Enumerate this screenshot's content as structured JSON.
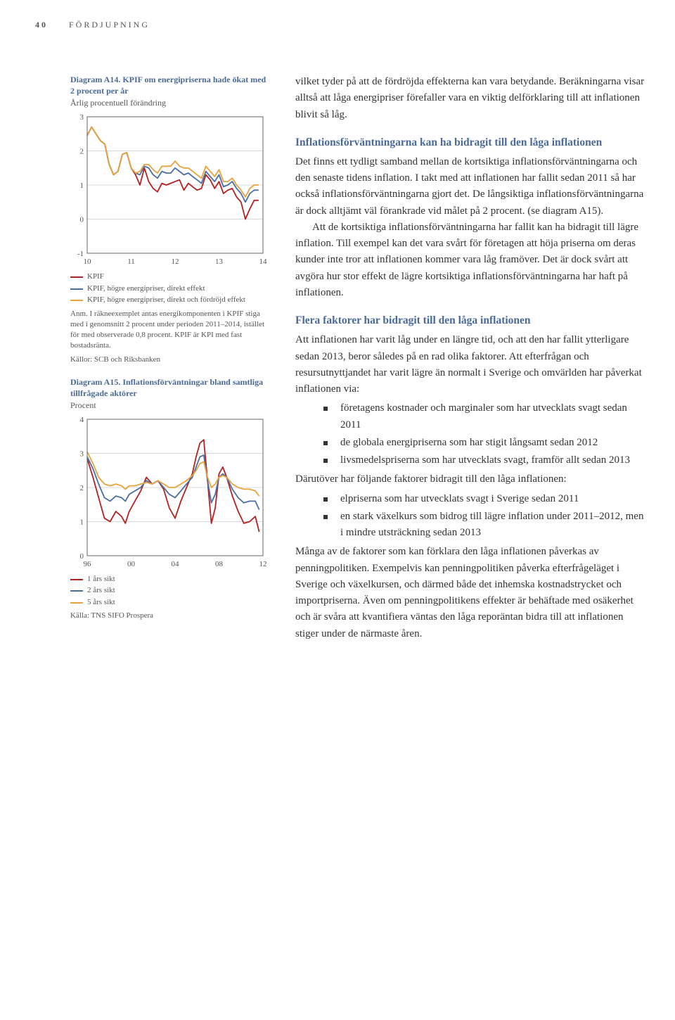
{
  "header": {
    "page_number": "40",
    "section": "FÖRDJUPNING"
  },
  "chartA14": {
    "title": "Diagram A14. KPIF om energipriserna hade ökat med 2 procent per år",
    "subtitle": "Årlig procentuell förändring",
    "type": "line",
    "background_color": "#ffffff",
    "grid_color": "#d9d9d9",
    "axis_color": "#666666",
    "tick_fontsize": 11,
    "xticks": [
      "10",
      "11",
      "12",
      "13",
      "14"
    ],
    "yticks": [
      "-1",
      "0",
      "1",
      "2",
      "3"
    ],
    "ylim": [
      -1,
      3
    ],
    "xlim": [
      0,
      4
    ],
    "series": [
      {
        "name": "KPIF",
        "color": "#b22222",
        "points": [
          [
            0.0,
            2.45
          ],
          [
            0.1,
            2.7
          ],
          [
            0.2,
            2.5
          ],
          [
            0.3,
            2.3
          ],
          [
            0.4,
            2.2
          ],
          [
            0.5,
            1.6
          ],
          [
            0.6,
            1.3
          ],
          [
            0.7,
            1.4
          ],
          [
            0.8,
            1.9
          ],
          [
            0.9,
            1.95
          ],
          [
            1.0,
            1.5
          ],
          [
            1.1,
            1.3
          ],
          [
            1.2,
            1.0
          ],
          [
            1.3,
            1.5
          ],
          [
            1.4,
            1.1
          ],
          [
            1.5,
            0.9
          ],
          [
            1.6,
            0.8
          ],
          [
            1.7,
            1.05
          ],
          [
            1.8,
            1.0
          ],
          [
            1.9,
            1.05
          ],
          [
            2.0,
            1.1
          ],
          [
            2.1,
            1.15
          ],
          [
            2.2,
            0.85
          ],
          [
            2.3,
            1.05
          ],
          [
            2.4,
            0.95
          ],
          [
            2.5,
            0.85
          ],
          [
            2.6,
            0.9
          ],
          [
            2.7,
            1.3
          ],
          [
            2.8,
            1.15
          ],
          [
            2.9,
            0.9
          ],
          [
            3.0,
            1.1
          ],
          [
            3.1,
            0.75
          ],
          [
            3.2,
            0.85
          ],
          [
            3.3,
            0.9
          ],
          [
            3.4,
            0.65
          ],
          [
            3.5,
            0.5
          ],
          [
            3.6,
            0.0
          ],
          [
            3.7,
            0.3
          ],
          [
            3.8,
            0.55
          ],
          [
            3.9,
            0.55
          ]
        ]
      },
      {
        "name": "KPIF, högre energipriser, direkt effekt",
        "color": "#4a6fa5",
        "points": [
          [
            0.0,
            2.45
          ],
          [
            0.1,
            2.7
          ],
          [
            0.2,
            2.5
          ],
          [
            0.3,
            2.3
          ],
          [
            0.4,
            2.2
          ],
          [
            0.5,
            1.6
          ],
          [
            0.6,
            1.3
          ],
          [
            0.7,
            1.4
          ],
          [
            0.8,
            1.9
          ],
          [
            0.9,
            1.95
          ],
          [
            1.0,
            1.5
          ],
          [
            1.1,
            1.35
          ],
          [
            1.2,
            1.3
          ],
          [
            1.3,
            1.55
          ],
          [
            1.4,
            1.5
          ],
          [
            1.5,
            1.3
          ],
          [
            1.6,
            1.2
          ],
          [
            1.7,
            1.4
          ],
          [
            1.8,
            1.35
          ],
          [
            1.9,
            1.35
          ],
          [
            2.0,
            1.5
          ],
          [
            2.1,
            1.4
          ],
          [
            2.2,
            1.3
          ],
          [
            2.3,
            1.35
          ],
          [
            2.4,
            1.25
          ],
          [
            2.5,
            1.15
          ],
          [
            2.6,
            1.05
          ],
          [
            2.7,
            1.4
          ],
          [
            2.8,
            1.25
          ],
          [
            2.9,
            1.1
          ],
          [
            3.0,
            1.3
          ],
          [
            3.1,
            0.95
          ],
          [
            3.2,
            1.0
          ],
          [
            3.3,
            1.1
          ],
          [
            3.4,
            0.9
          ],
          [
            3.5,
            0.75
          ],
          [
            3.6,
            0.5
          ],
          [
            3.7,
            0.75
          ],
          [
            3.8,
            0.85
          ],
          [
            3.9,
            0.85
          ]
        ]
      },
      {
        "name": "KPIF, högre energipriser, direkt och fördröjd effekt",
        "color": "#e8a33d",
        "points": [
          [
            0.0,
            2.45
          ],
          [
            0.1,
            2.7
          ],
          [
            0.2,
            2.5
          ],
          [
            0.3,
            2.3
          ],
          [
            0.4,
            2.2
          ],
          [
            0.5,
            1.6
          ],
          [
            0.6,
            1.3
          ],
          [
            0.7,
            1.4
          ],
          [
            0.8,
            1.9
          ],
          [
            0.9,
            1.95
          ],
          [
            1.0,
            1.5
          ],
          [
            1.1,
            1.35
          ],
          [
            1.2,
            1.4
          ],
          [
            1.3,
            1.6
          ],
          [
            1.4,
            1.6
          ],
          [
            1.5,
            1.45
          ],
          [
            1.6,
            1.35
          ],
          [
            1.7,
            1.55
          ],
          [
            1.8,
            1.55
          ],
          [
            1.9,
            1.55
          ],
          [
            2.0,
            1.7
          ],
          [
            2.1,
            1.55
          ],
          [
            2.2,
            1.5
          ],
          [
            2.3,
            1.5
          ],
          [
            2.4,
            1.4
          ],
          [
            2.5,
            1.3
          ],
          [
            2.6,
            1.2
          ],
          [
            2.7,
            1.55
          ],
          [
            2.8,
            1.4
          ],
          [
            2.9,
            1.25
          ],
          [
            3.0,
            1.45
          ],
          [
            3.1,
            1.1
          ],
          [
            3.2,
            1.1
          ],
          [
            3.3,
            1.2
          ],
          [
            3.4,
            1.0
          ],
          [
            3.5,
            0.85
          ],
          [
            3.6,
            0.65
          ],
          [
            3.7,
            0.9
          ],
          [
            3.8,
            1.0
          ],
          [
            3.9,
            1.0
          ]
        ]
      }
    ],
    "legend": [
      {
        "color": "#b22222",
        "label": "KPIF"
      },
      {
        "color": "#4a6fa5",
        "label": "KPIF, högre energipriser, direkt effekt"
      },
      {
        "color": "#e8a33d",
        "label": "KPIF, högre energipriser, direkt och fördröjd effekt"
      }
    ],
    "note": "Anm. I räkneexemplet antas energikomponenten i KPIF stiga med i genomsnitt 2 procent under perioden 2011–2014, istället för med observerade 0,8 procent. KPIF är KPI med fast bostadsränta.",
    "source": "Källor: SCB och Riksbanken"
  },
  "chartA15": {
    "title": "Diagram A15. Inflationsförväntningar bland samtliga tillfrågade aktörer",
    "subtitle": "Procent",
    "type": "line",
    "background_color": "#ffffff",
    "grid_color": "#d9d9d9",
    "axis_color": "#666666",
    "tick_fontsize": 11,
    "xticks": [
      "96",
      "00",
      "04",
      "08",
      "12"
    ],
    "yticks": [
      "0",
      "1",
      "2",
      "3",
      "4"
    ],
    "ylim": [
      0,
      4
    ],
    "xlim": [
      0,
      4.6
    ],
    "series": [
      {
        "name": "1 års sikt",
        "color": "#b22222",
        "points": [
          [
            0.0,
            2.85
          ],
          [
            0.15,
            2.3
          ],
          [
            0.3,
            1.7
          ],
          [
            0.45,
            1.1
          ],
          [
            0.6,
            1.0
          ],
          [
            0.75,
            1.3
          ],
          [
            0.9,
            1.15
          ],
          [
            1.0,
            0.95
          ],
          [
            1.1,
            1.3
          ],
          [
            1.25,
            1.6
          ],
          [
            1.4,
            1.9
          ],
          [
            1.55,
            2.3
          ],
          [
            1.7,
            2.1
          ],
          [
            1.85,
            2.2
          ],
          [
            2.0,
            1.95
          ],
          [
            2.15,
            1.4
          ],
          [
            2.3,
            1.1
          ],
          [
            2.45,
            1.6
          ],
          [
            2.6,
            2.0
          ],
          [
            2.75,
            2.4
          ],
          [
            2.85,
            2.9
          ],
          [
            2.95,
            3.3
          ],
          [
            3.05,
            3.4
          ],
          [
            3.15,
            2.2
          ],
          [
            3.25,
            0.95
          ],
          [
            3.35,
            1.4
          ],
          [
            3.45,
            2.4
          ],
          [
            3.55,
            2.6
          ],
          [
            3.65,
            2.3
          ],
          [
            3.8,
            1.75
          ],
          [
            3.95,
            1.3
          ],
          [
            4.1,
            0.95
          ],
          [
            4.25,
            1.0
          ],
          [
            4.4,
            1.15
          ],
          [
            4.5,
            0.7
          ]
        ]
      },
      {
        "name": "2 års sikt",
        "color": "#4a6fa5",
        "points": [
          [
            0.0,
            2.9
          ],
          [
            0.15,
            2.55
          ],
          [
            0.3,
            2.1
          ],
          [
            0.45,
            1.7
          ],
          [
            0.6,
            1.6
          ],
          [
            0.75,
            1.75
          ],
          [
            0.9,
            1.7
          ],
          [
            1.0,
            1.6
          ],
          [
            1.1,
            1.8
          ],
          [
            1.25,
            1.9
          ],
          [
            1.4,
            2.0
          ],
          [
            1.55,
            2.2
          ],
          [
            1.7,
            2.1
          ],
          [
            1.85,
            2.2
          ],
          [
            2.0,
            2.0
          ],
          [
            2.15,
            1.8
          ],
          [
            2.3,
            1.7
          ],
          [
            2.45,
            1.9
          ],
          [
            2.6,
            2.1
          ],
          [
            2.75,
            2.3
          ],
          [
            2.85,
            2.6
          ],
          [
            2.95,
            2.9
          ],
          [
            3.05,
            2.95
          ],
          [
            3.15,
            2.2
          ],
          [
            3.25,
            1.55
          ],
          [
            3.35,
            1.8
          ],
          [
            3.45,
            2.3
          ],
          [
            3.55,
            2.4
          ],
          [
            3.65,
            2.3
          ],
          [
            3.8,
            1.95
          ],
          [
            3.95,
            1.7
          ],
          [
            4.1,
            1.55
          ],
          [
            4.25,
            1.6
          ],
          [
            4.4,
            1.6
          ],
          [
            4.5,
            1.35
          ]
        ]
      },
      {
        "name": "5 års sikt",
        "color": "#e8a33d",
        "points": [
          [
            0.0,
            3.05
          ],
          [
            0.15,
            2.7
          ],
          [
            0.3,
            2.3
          ],
          [
            0.45,
            2.1
          ],
          [
            0.6,
            2.05
          ],
          [
            0.75,
            2.1
          ],
          [
            0.9,
            2.05
          ],
          [
            1.0,
            1.95
          ],
          [
            1.1,
            2.05
          ],
          [
            1.25,
            2.05
          ],
          [
            1.4,
            2.1
          ],
          [
            1.55,
            2.15
          ],
          [
            1.7,
            2.1
          ],
          [
            1.85,
            2.2
          ],
          [
            2.0,
            2.1
          ],
          [
            2.15,
            2.0
          ],
          [
            2.3,
            2.0
          ],
          [
            2.45,
            2.1
          ],
          [
            2.6,
            2.2
          ],
          [
            2.75,
            2.35
          ],
          [
            2.85,
            2.5
          ],
          [
            2.95,
            2.7
          ],
          [
            3.05,
            2.75
          ],
          [
            3.15,
            2.3
          ],
          [
            3.25,
            2.0
          ],
          [
            3.35,
            2.1
          ],
          [
            3.45,
            2.3
          ],
          [
            3.55,
            2.35
          ],
          [
            3.65,
            2.3
          ],
          [
            3.8,
            2.1
          ],
          [
            3.95,
            2.0
          ],
          [
            4.1,
            1.95
          ],
          [
            4.25,
            1.95
          ],
          [
            4.4,
            1.9
          ],
          [
            4.5,
            1.75
          ]
        ]
      }
    ],
    "legend": [
      {
        "color": "#b22222",
        "label": "1 års sikt"
      },
      {
        "color": "#4a6fa5",
        "label": "2 års sikt"
      },
      {
        "color": "#e8a33d",
        "label": "5 års sikt"
      }
    ],
    "source": "Källa: TNS SIFO Prospera"
  },
  "body": {
    "intro": "vilket tyder på att de fördröjda effekterna kan vara betydande. Beräkningarna visar alltså att låga energipriser förefaller vara en viktig delförklaring till att inflationen blivit så låg.",
    "h1": "Inflationsförväntningarna kan ha bidragit till den låga inflationen",
    "p1": "Det finns ett tydligt samband mellan de kortsiktiga inflationsförväntningarna och den senaste tidens inflation. I takt med att inflationen har fallit sedan 2011 så har också inflationsförväntningarna gjort det. De långsiktiga inflationsförväntningarna är dock alltjämt väl förankrade vid målet på 2 procent. (se diagram A15).",
    "p1b": "Att de kortsiktiga inflationsförväntningarna har fallit kan ha bidragit till lägre inflation. Till exempel kan det vara svårt för företagen att höja priserna om deras kunder inte tror att inflationen kommer vara låg framöver. Det är dock svårt att avgöra hur stor effekt de lägre kortsiktiga inflationsförväntningarna har haft på inflationen.",
    "h2": "Flera faktorer har bidragit till den låga inflationen",
    "p2": "Att inflationen har varit låg under en längre tid, och att den har fallit ytterligare sedan 2013, beror således på en rad olika faktorer. Att efterfrågan och resursutnyttjandet har varit lägre än normalt i Sverige och omvärlden har påverkat inflationen via:",
    "bullets1": [
      "företagens kostnader och marginaler som har utvecklats svagt sedan 2011",
      "de globala energipriserna som har stigit långsamt sedan 2012",
      "livsmedelspriserna som har utvecklats svagt, framför allt sedan 2013"
    ],
    "p3": "Därutöver har följande faktorer bidragit till den låga inflationen:",
    "bullets2": [
      "elpriserna som har utvecklats svagt i Sverige sedan 2011",
      "en stark växelkurs som bidrog till lägre inflation under 2011–2012, men i mindre utsträckning sedan 2013"
    ],
    "p4": "Många av de faktorer som kan förklara den låga inflationen påverkas av penningpolitiken. Exempelvis kan penningpolitiken påverka efterfrågeläget i Sverige och växelkursen, och därmed både det inhemska kostnadstrycket och importpriserna. Även om penningpolitikens effekter är behäftade med osäkerhet och är svåra att kvantifiera väntas den låga reporäntan bidra till att inflationen stiger under de närmaste åren."
  }
}
